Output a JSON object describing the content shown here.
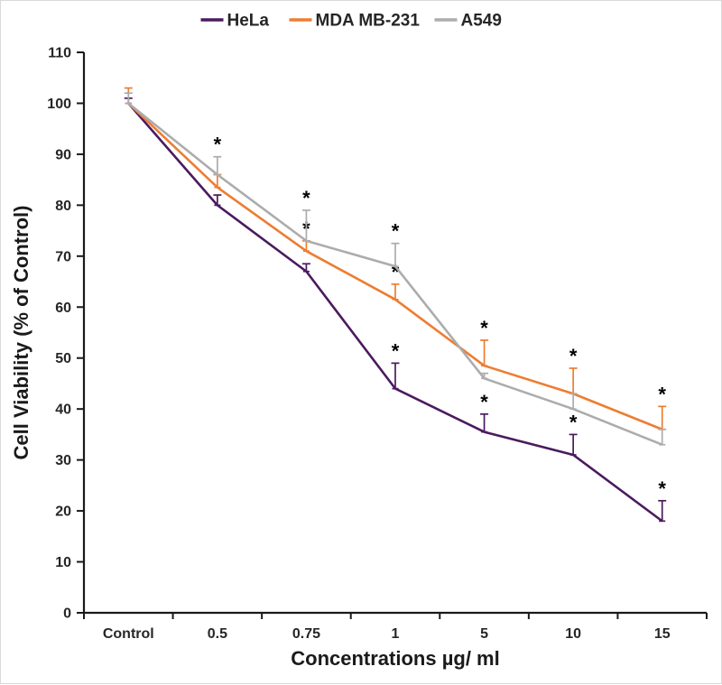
{
  "chart_data": {
    "type": "line",
    "title": "",
    "xlabel": "Concentrations µg/ ml",
    "ylabel": "Cell  Viability (% of Control)",
    "categories": [
      "Control",
      "0.5",
      "0.75",
      "1",
      "5",
      "10",
      "15"
    ],
    "yticks": [
      0,
      10,
      20,
      30,
      40,
      50,
      60,
      70,
      80,
      90,
      100,
      110
    ],
    "ylim": [
      0,
      110
    ],
    "grid": false,
    "legend_position": "top-center",
    "annotation_symbol": "*",
    "axis_color": "#1a1a1a",
    "text_color": "#262626",
    "series": [
      {
        "name": "HeLa",
        "color": "#4a1a5e",
        "values": [
          100,
          80,
          67,
          44,
          35.5,
          31,
          18
        ],
        "err_up": [
          1,
          2,
          1.5,
          5,
          3.5,
          4,
          4
        ],
        "asterisk_indices": [
          3,
          4,
          5,
          6
        ]
      },
      {
        "name": "MDA MB-231",
        "color": "#ED7D31",
        "values": [
          100,
          83.5,
          71,
          61.5,
          48.5,
          43,
          36
        ],
        "err_up": [
          3,
          2.5,
          2,
          3,
          5,
          5,
          4.5
        ],
        "asterisk_indices": [
          2,
          3,
          4,
          5,
          6
        ]
      },
      {
        "name": "A549",
        "color": "#ACACAC",
        "values": [
          100,
          86,
          73,
          68,
          46,
          40,
          33
        ],
        "err_up": [
          2,
          3.5,
          6,
          4.5,
          1,
          3,
          3
        ],
        "asterisk_indices": [
          1,
          2,
          3
        ]
      }
    ]
  }
}
